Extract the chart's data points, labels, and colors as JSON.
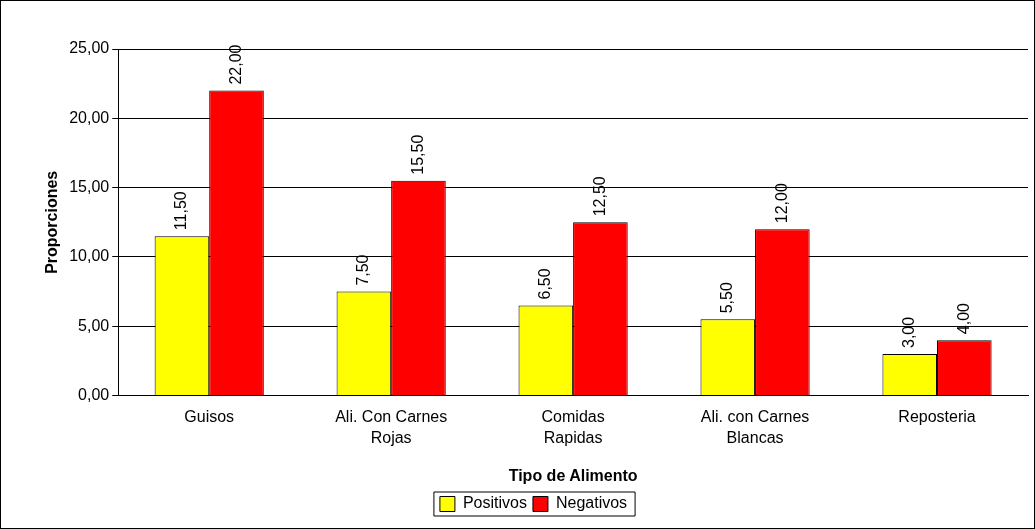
{
  "chart_data": {
    "type": "bar",
    "xlabel": "Tipo de Alimento",
    "ylabel": "Proporciones",
    "categories": [
      "Guisos",
      "Ali. Con Carnes Rojas",
      "Comidas Rapidas",
      "Ali. con Carnes Blancas",
      "Reposteria"
    ],
    "series": [
      {
        "name": "Positivos",
        "color": "#ffff00",
        "values": [
          11.5,
          7.5,
          6.5,
          5.5,
          3
        ],
        "value_labels": [
          "11,50",
          "7,50",
          "6,50",
          "5,50",
          "3,00"
        ]
      },
      {
        "name": "Negativos",
        "color": "#ff0000",
        "values": [
          22,
          15.5,
          12.5,
          12,
          4
        ],
        "value_labels": [
          "22,00",
          "15,50",
          "12,50",
          "12,00",
          "4,00"
        ]
      }
    ],
    "ylim": [
      0,
      25
    ],
    "yticks": [
      {
        "value": 0,
        "label": "0,00"
      },
      {
        "value": 5,
        "label": "5,00"
      },
      {
        "value": 10,
        "label": "10,00"
      },
      {
        "value": 15,
        "label": "15,00"
      },
      {
        "value": 20,
        "label": "20,00"
      },
      {
        "value": 25,
        "label": "25,00"
      }
    ],
    "grid": "y",
    "legend": "bottom"
  }
}
